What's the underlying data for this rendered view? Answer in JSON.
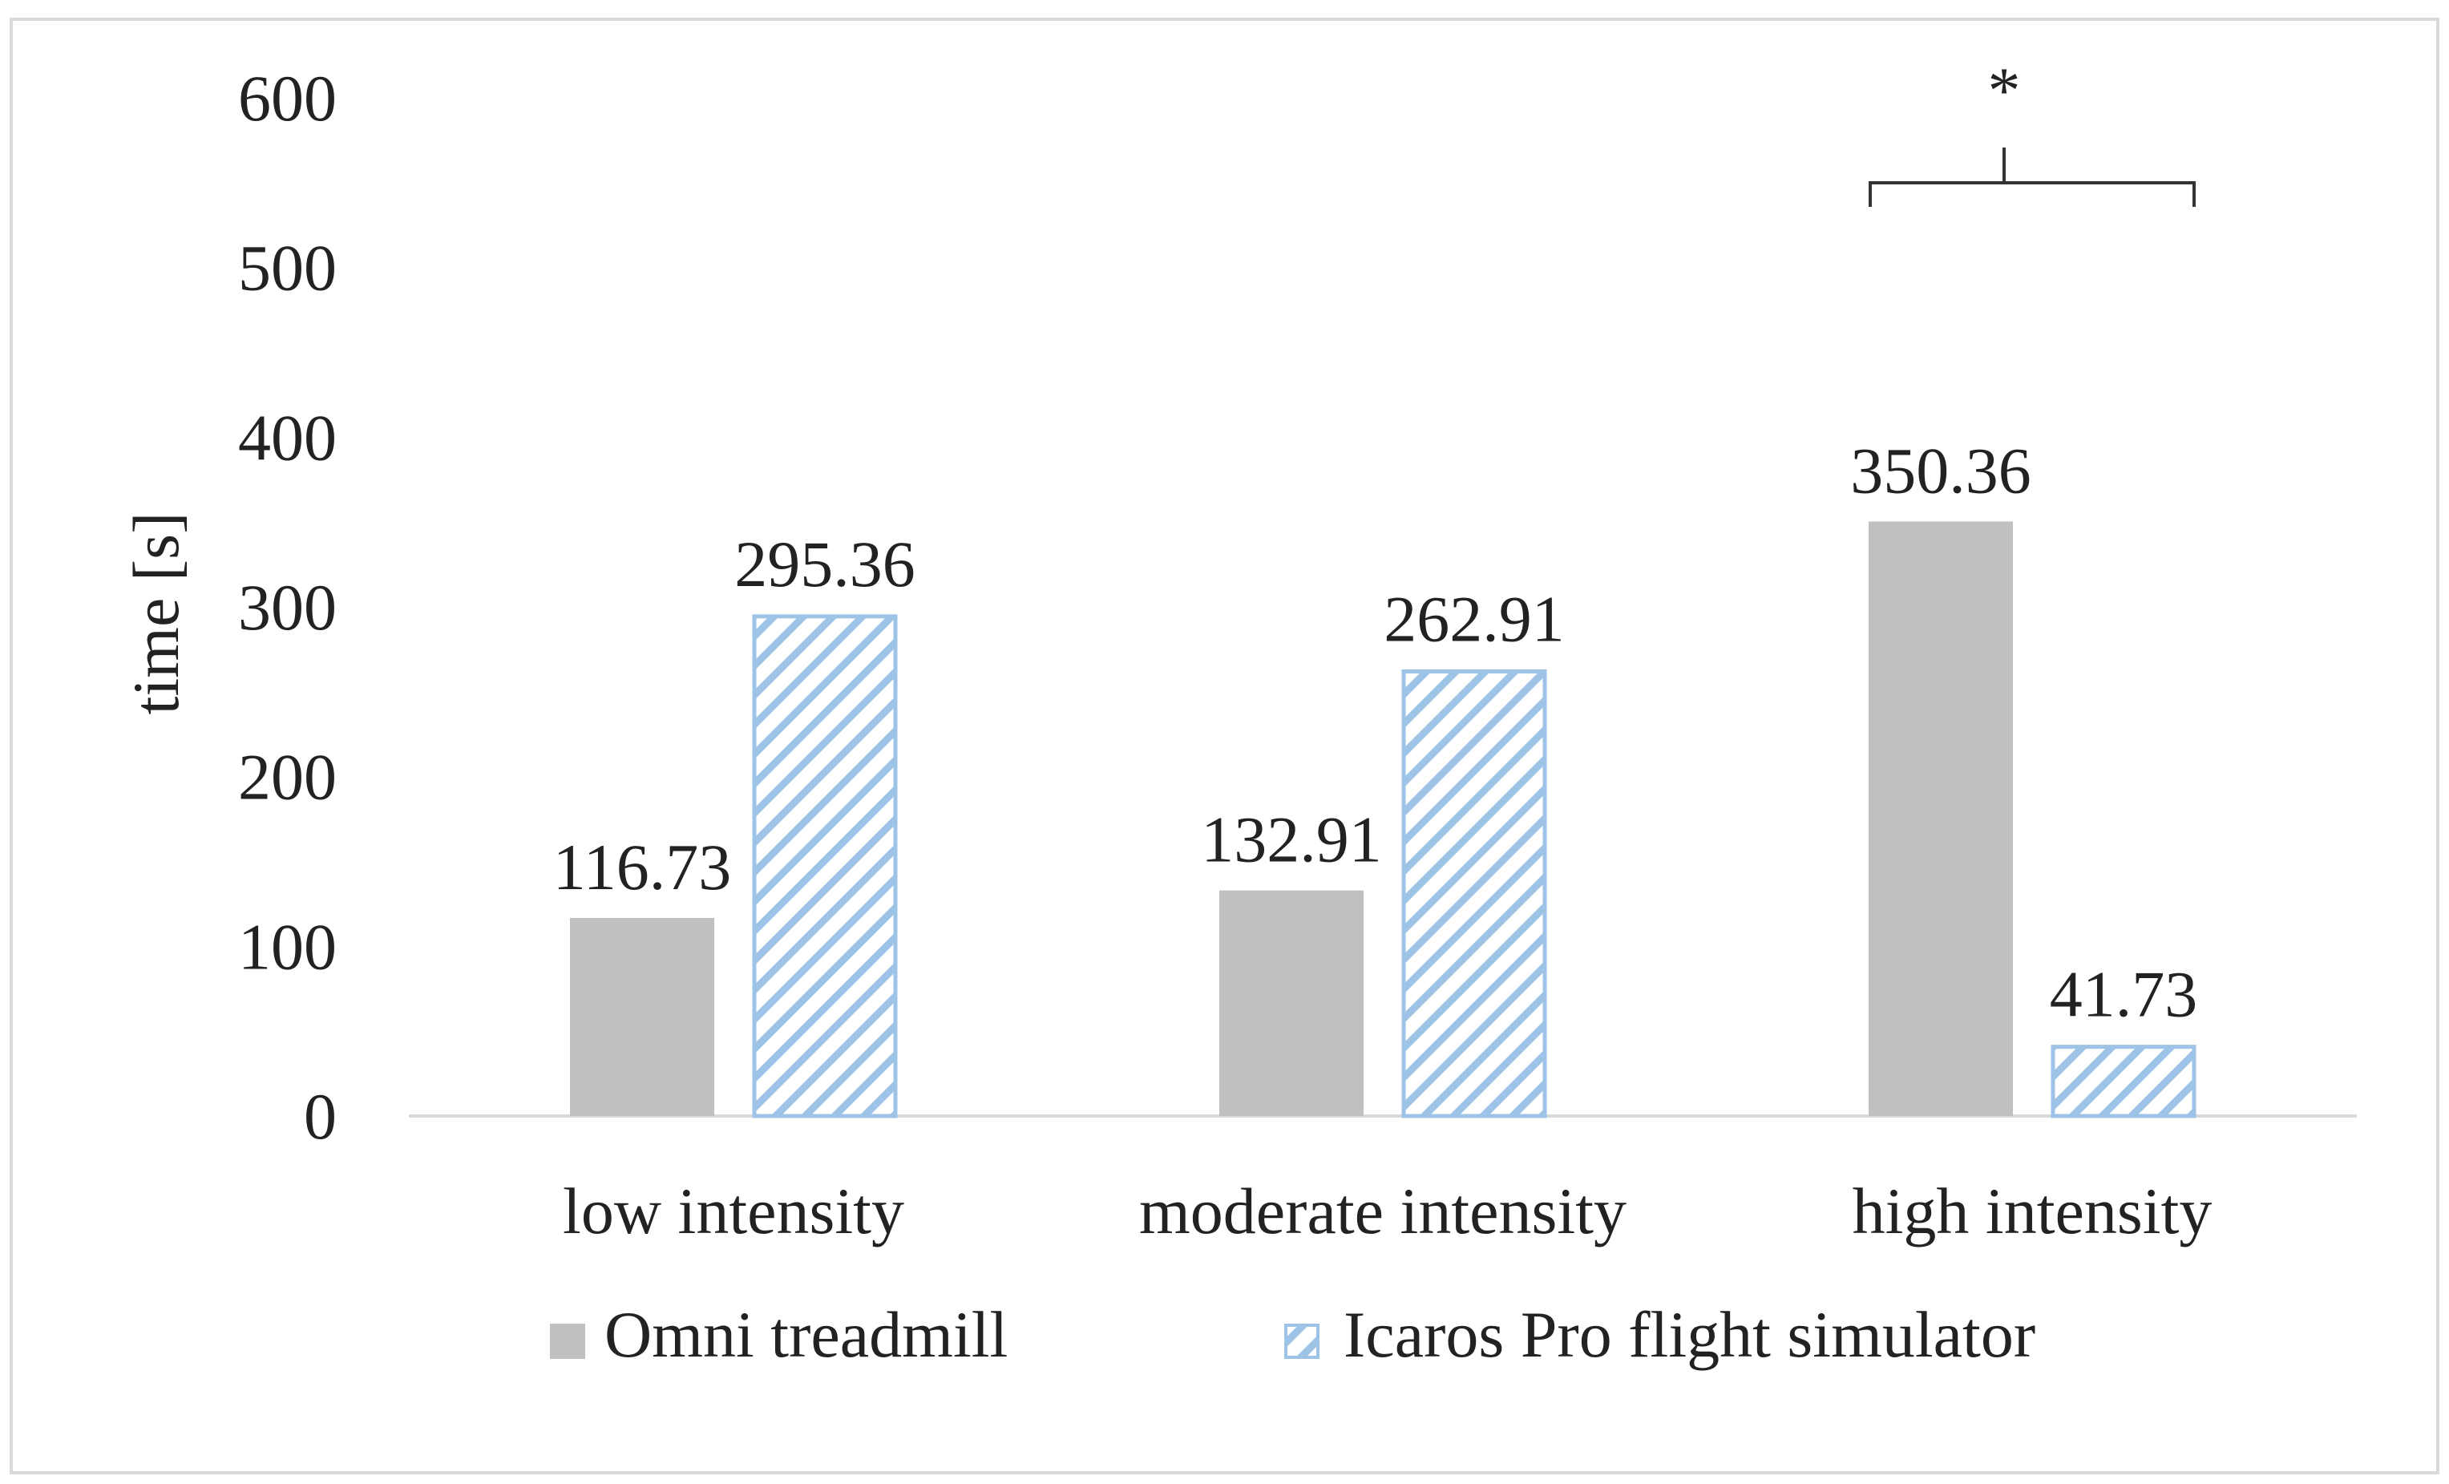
{
  "chart_data": {
    "type": "bar",
    "title": "",
    "xlabel": "",
    "ylabel": "time [s]",
    "ylim": [
      0,
      600
    ],
    "yticks": [
      0,
      100,
      200,
      300,
      400,
      500,
      600
    ],
    "ytick_labels": [
      "0",
      "100",
      "200",
      "300",
      "400",
      "500",
      "600"
    ],
    "grid": false,
    "categories": [
      "low intensity",
      "moderate intensity",
      "high intensity"
    ],
    "series": [
      {
        "name": "Omni treadmill",
        "values": [
          116.73,
          132.91,
          350.36
        ],
        "labels": [
          "116.73",
          "132.91",
          "350.36"
        ],
        "color": "#c0c0c0",
        "pattern": "solid"
      },
      {
        "name": "Icaros Pro flight simulator",
        "values": [
          295.36,
          262.91,
          41.73
        ],
        "labels": [
          "295.36",
          "262.91",
          "41.73"
        ],
        "color": "#9dc3e6",
        "pattern": "hatch"
      }
    ],
    "legend_position": "bottom",
    "annotations": [
      {
        "text": "*",
        "category": "high intensity",
        "type": "significance-bracket"
      }
    ]
  },
  "colors": {
    "frame": "#d9d9d9",
    "axis": "#d9d9d9",
    "text": "#222222",
    "bracket": "#333333"
  }
}
